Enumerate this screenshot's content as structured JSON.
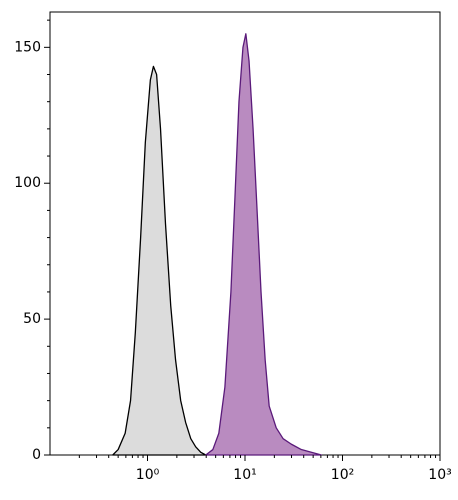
{
  "chart_data": {
    "type": "area",
    "xscale": "log",
    "xlim": [
      0.1,
      1000
    ],
    "ylim": [
      0,
      163
    ],
    "xticks": [
      {
        "value": 1,
        "label": "10⁰"
      },
      {
        "value": 10,
        "label": "10¹"
      },
      {
        "value": 100,
        "label": "10²"
      },
      {
        "value": 1000,
        "label": "10³"
      }
    ],
    "xminor_ticks": [
      0.2,
      0.3,
      0.4,
      0.5,
      0.6,
      0.7,
      0.8,
      0.9,
      2,
      3,
      4,
      5,
      6,
      7,
      8,
      9,
      20,
      30,
      40,
      50,
      60,
      70,
      80,
      90,
      200,
      300,
      400,
      500,
      600,
      700,
      800,
      900
    ],
    "yticks": [
      0,
      50,
      100,
      150
    ],
    "yminor_ticks": [
      10,
      20,
      30,
      40,
      60,
      70,
      80,
      90,
      110,
      120,
      130,
      140,
      160
    ],
    "series": [
      {
        "color": "#dcdcdc",
        "line_color": "#000000",
        "x": [
          0.44,
          0.5,
          0.59,
          0.67,
          0.75,
          0.85,
          0.95,
          1.07,
          1.15,
          1.24,
          1.36,
          1.53,
          1.73,
          1.94,
          2.19,
          2.46,
          2.78,
          3.12,
          3.52,
          3.96
        ],
        "values": [
          0,
          2,
          8,
          20,
          45,
          80,
          115,
          138,
          143,
          140,
          120,
          85,
          55,
          35,
          20,
          12,
          6,
          3,
          1,
          0
        ]
      },
      {
        "color": "#b98bc0",
        "line_color": "#5a1a7a",
        "x": [
          3.96,
          4.68,
          5.39,
          6.22,
          7.17,
          7.89,
          8.67,
          9.53,
          10.2,
          11.0,
          12.1,
          13.3,
          14.6,
          16.1,
          17.7,
          20.9,
          24.6,
          29.8,
          37.8,
          47.9,
          60.8
        ],
        "values": [
          0,
          2,
          8,
          25,
          60,
          95,
          130,
          150,
          155,
          145,
          120,
          90,
          60,
          35,
          18,
          10,
          6,
          4,
          2,
          1,
          0
        ]
      }
    ]
  }
}
